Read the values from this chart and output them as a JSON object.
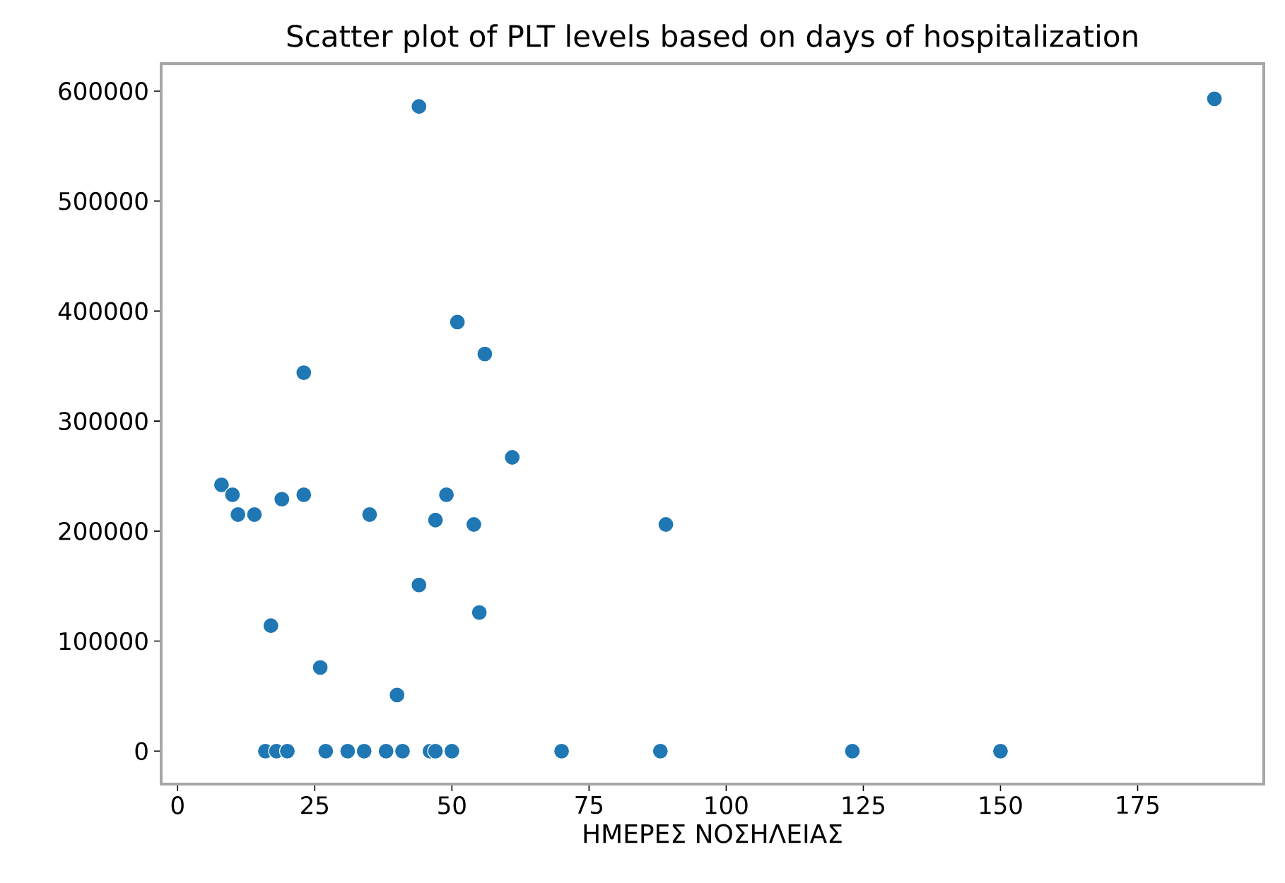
{
  "chart_data": {
    "type": "scatter",
    "title": "Scatter plot of PLT levels based on days of hospitalization",
    "xlabel": "ΗΜΕΡΕΣ ΝΟΣΗΛΕΙΑΣ",
    "x": [
      8,
      10,
      11,
      14,
      19,
      23,
      23,
      17,
      26,
      35,
      40,
      44,
      51,
      56,
      49,
      47,
      54,
      61,
      55,
      89,
      16,
      18,
      20,
      27,
      31,
      34,
      38,
      41,
      46,
      47,
      50,
      70,
      88,
      123,
      150,
      44,
      189
    ],
    "series": [
      {
        "color": "#1f77b4",
        "values": [
          242000,
          233000,
          215000,
          215000,
          229000,
          233000,
          344000,
          114000,
          76000,
          215000,
          51000,
          151000,
          390000,
          361000,
          233000,
          210000,
          206000,
          267000,
          126000,
          206000,
          0,
          0,
          0,
          0,
          0,
          0,
          0,
          0,
          0,
          0,
          0,
          0,
          0,
          0,
          0,
          586000,
          593000
        ]
      }
    ],
    "xlim": [
      -3,
      198
    ],
    "ylim": [
      -30000,
      625000
    ],
    "xticks": [
      0,
      25,
      50,
      75,
      100,
      125,
      150,
      175
    ],
    "yticks": [
      0,
      100000,
      200000,
      300000,
      400000,
      500000,
      600000
    ],
    "marker": "circle",
    "grid": false
  }
}
